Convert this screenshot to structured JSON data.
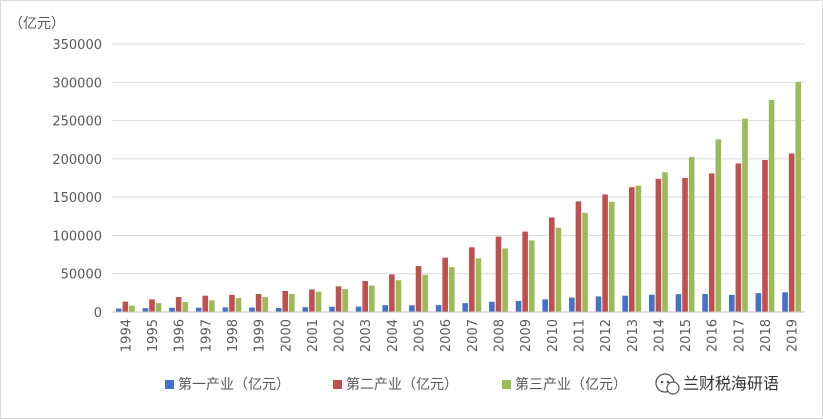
{
  "chart_data": {
    "type": "bar",
    "unit_label": "（亿元）",
    "categories": [
      "1994",
      "1995",
      "1996",
      "1997",
      "1998",
      "1999",
      "2000",
      "2001",
      "2002",
      "2003",
      "2004",
      "2005",
      "2006",
      "2007",
      "2008",
      "2009",
      "2010",
      "2011",
      "2012",
      "2013",
      "2014",
      "2015",
      "2016",
      "2017",
      "2018",
      "2019"
    ],
    "series": [
      {
        "name": "第一产业（亿元）",
        "color": "#4472c4",
        "values": [
          4500,
          5000,
          5500,
          5600,
          6000,
          5800,
          5200,
          6300,
          6800,
          7000,
          8900,
          8700,
          9000,
          11500,
          13500,
          14500,
          16500,
          18800,
          20300,
          21300,
          22500,
          23300,
          23400,
          22400,
          24600,
          25700
        ]
      },
      {
        "name": "第二产业（亿元）",
        "color": "#c0504d",
        "values": [
          13500,
          16500,
          19500,
          21300,
          22300,
          23500,
          27500,
          29500,
          33500,
          40500,
          49000,
          60000,
          71000,
          84500,
          98500,
          105000,
          123500,
          144500,
          153500,
          163000,
          174000,
          175000,
          181000,
          194000,
          198500,
          207000
        ]
      },
      {
        "name": "第三产业（亿元）",
        "color": "#9bbb59",
        "values": [
          8200,
          11500,
          13000,
          15300,
          18300,
          19600,
          23500,
          26500,
          30000,
          34500,
          41500,
          48500,
          58500,
          70000,
          83000,
          93500,
          110000,
          129500,
          144000,
          165000,
          182500,
          202500,
          225500,
          252500,
          277000,
          300500
        ]
      }
    ],
    "ylim": [
      0,
      350000
    ],
    "yticks": [
      "0",
      "50000",
      "100000",
      "150000",
      "200000",
      "250000",
      "300000",
      "350000"
    ],
    "grid": true,
    "legend": "bottom"
  },
  "watermark": {
    "text": "兰财税海研语",
    "icon": "wechat-icon"
  }
}
